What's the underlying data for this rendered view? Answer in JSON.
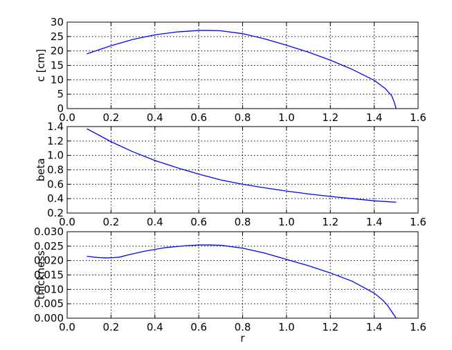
{
  "chart_data": [
    {
      "type": "line",
      "xlabel": "",
      "ylabel": "c [cm]",
      "xlim": [
        0.0,
        1.6
      ],
      "ylim": [
        0,
        30
      ],
      "xticks": [
        "0.0",
        "0.2",
        "0.4",
        "0.6",
        "0.8",
        "1.0",
        "1.2",
        "1.4",
        "1.6"
      ],
      "yticks": [
        "0",
        "5",
        "10",
        "15",
        "20",
        "25",
        "30"
      ],
      "grid": true,
      "color": "#0000ff",
      "series": [
        {
          "x": [
            0.09,
            0.2,
            0.3,
            0.4,
            0.5,
            0.6,
            0.65,
            0.7,
            0.8,
            0.9,
            1.0,
            1.1,
            1.2,
            1.3,
            1.4,
            1.45,
            1.48,
            1.49,
            1.5
          ],
          "y": [
            19.0,
            21.8,
            24.0,
            25.6,
            26.6,
            27.1,
            27.1,
            27.0,
            26.0,
            24.2,
            22.0,
            19.6,
            16.8,
            13.6,
            9.8,
            7.0,
            4.4,
            2.5,
            0.0
          ]
        }
      ]
    },
    {
      "type": "line",
      "xlabel": "",
      "ylabel": "beta",
      "xlim": [
        0.0,
        1.6
      ],
      "ylim": [
        0.2,
        1.4
      ],
      "xticks": [
        "0.0",
        "0.2",
        "0.4",
        "0.6",
        "0.8",
        "1.0",
        "1.2",
        "1.4",
        "1.6"
      ],
      "yticks": [
        "0.2",
        "0.4",
        "0.6",
        "0.8",
        "1.0",
        "1.2",
        "1.4"
      ],
      "grid": true,
      "color": "#0000ff",
      "series": [
        {
          "x": [
            0.09,
            0.2,
            0.3,
            0.4,
            0.5,
            0.6,
            0.7,
            0.8,
            0.9,
            1.0,
            1.1,
            1.2,
            1.3,
            1.4,
            1.5
          ],
          "y": [
            1.37,
            1.19,
            1.05,
            0.93,
            0.83,
            0.74,
            0.66,
            0.6,
            0.55,
            0.505,
            0.465,
            0.43,
            0.4,
            0.37,
            0.35
          ]
        }
      ]
    },
    {
      "type": "line",
      "xlabel": "r",
      "ylabel": "thickness",
      "xlim": [
        0.0,
        1.6
      ],
      "ylim": [
        0.0,
        0.03
      ],
      "xticks": [
        "0.0",
        "0.2",
        "0.4",
        "0.6",
        "0.8",
        "1.0",
        "1.2",
        "1.4",
        "1.6"
      ],
      "yticks": [
        "0.000",
        "0.005",
        "0.010",
        "0.015",
        "0.020",
        "0.025",
        "0.030"
      ],
      "grid": true,
      "color": "#0000ff",
      "series": [
        {
          "x": [
            0.09,
            0.12,
            0.15,
            0.18,
            0.21,
            0.24,
            0.28,
            0.35,
            0.45,
            0.55,
            0.6,
            0.65,
            0.7,
            0.8,
            0.9,
            1.0,
            1.1,
            1.2,
            1.3,
            1.4,
            1.44,
            1.46,
            1.5
          ],
          "y": [
            0.0215,
            0.0212,
            0.021,
            0.0209,
            0.021,
            0.0212,
            0.022,
            0.0232,
            0.0245,
            0.0252,
            0.0254,
            0.0254,
            0.0253,
            0.0243,
            0.0226,
            0.0204,
            0.0182,
            0.0157,
            0.0128,
            0.0087,
            0.0062,
            0.0045,
            0.0
          ]
        }
      ]
    }
  ]
}
